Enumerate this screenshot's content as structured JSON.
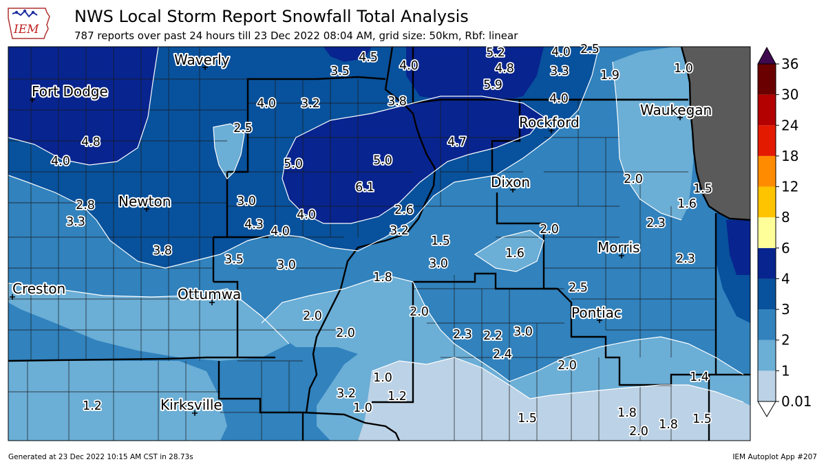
{
  "header": {
    "title": "NWS Local Storm Report Snowfall Total Analysis",
    "subtitle": "787 reports over past 24 hours till 23 Dec 2022 08:04 AM, grid size: 50km, Rbf: linear",
    "logo_text": "IEM"
  },
  "footer": {
    "left": "Generated at 23 Dec 2022 10:15 AM CST in 28.73s",
    "right": "IEM Autoplot App #207"
  },
  "colorbar": {
    "levels": [
      "0.01",
      "1",
      "2",
      "3",
      "4",
      "6",
      "8",
      "12",
      "18",
      "24",
      "30",
      "36"
    ],
    "colors": [
      "#ffffff",
      "#bcd2e6",
      "#6baed6",
      "#3182bd",
      "#08519c",
      "#08248f",
      "#ffff99",
      "#ffc400",
      "#ff8c00",
      "#e31a00",
      "#b30000",
      "#6b0000",
      "#3f0a4f"
    ]
  },
  "map": {
    "colors": {
      "level_1": "#bcd2e6",
      "level_2": "#6baed6",
      "level_3": "#3182bd",
      "level_4": "#08519c",
      "level_6": "#08248f",
      "lake": "#5a5a5a"
    },
    "cities": [
      "Waverly",
      "Fort Dodge",
      "Rockford",
      "Waukegan",
      "Dixon",
      "Newton",
      "Morris",
      "Creston",
      "Ottumwa",
      "Pontiac",
      "Kirksville"
    ],
    "values": [
      "4.5",
      "5.2",
      "4.0",
      "2.5",
      "3.5",
      "4.0",
      "4.8",
      "3.3",
      "1.9",
      "1.0",
      "5.9",
      "4.0",
      "3.2",
      "3.8",
      "4.0",
      "2.5",
      "4.7",
      "4.8",
      "4.0",
      "5.0",
      "5.0",
      "6.1",
      "2.0",
      "1.5",
      "2.8",
      "3.0",
      "1.6",
      "3.3",
      "4.0",
      "2.6",
      "2.3",
      "4.3",
      "4.0",
      "3.2",
      "2.0",
      "1.5",
      "3.8",
      "3.5",
      "3.0",
      "3.0",
      "1.6",
      "2.3",
      "1.8",
      "2.5",
      "2.0",
      "2.0",
      "2.0",
      "2.3",
      "2.2",
      "3.0",
      "2.4",
      "2.0",
      "1.0",
      "1.4",
      "3.2",
      "1.2",
      "1.2",
      "1.0",
      "1.5",
      "1.8",
      "1.8",
      "1.5",
      "2.0"
    ]
  }
}
